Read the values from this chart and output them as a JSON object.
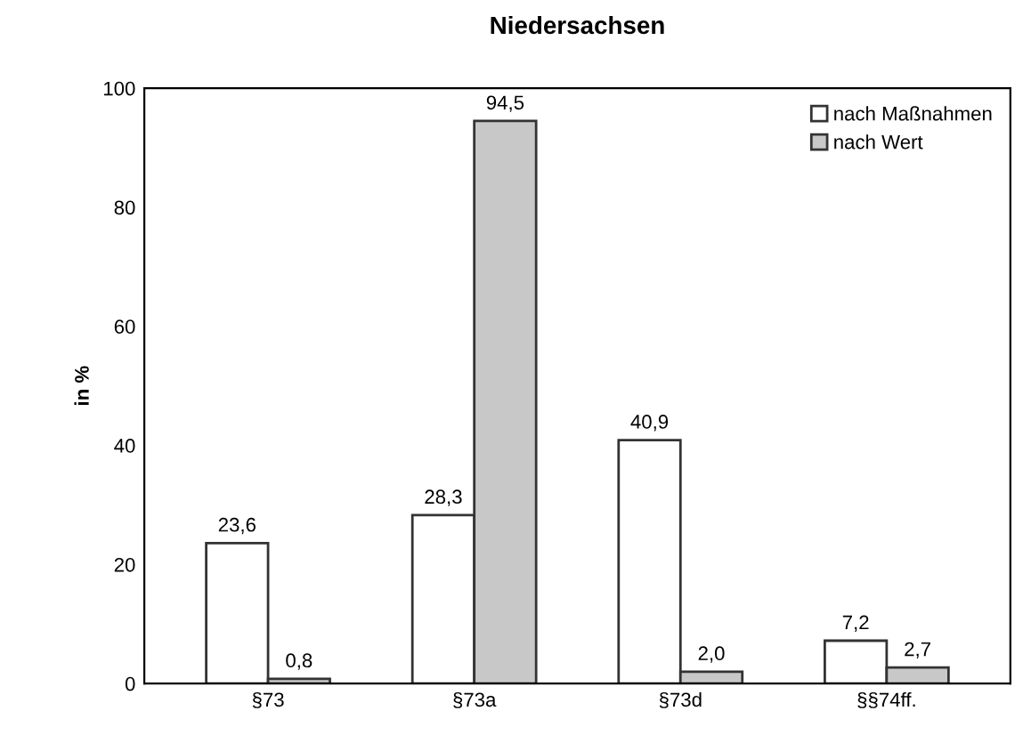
{
  "chart_data": {
    "type": "bar",
    "title": "Niedersachsen",
    "ylabel": "in %",
    "categories": [
      "§73",
      "§73a",
      "§73d",
      "§§74ff."
    ],
    "series": [
      {
        "name": "nach Maßnahmen",
        "color": "#ffffff",
        "values": [
          23.6,
          28.3,
          40.9,
          7.2
        ],
        "value_labels": [
          "23,6",
          "28,3",
          "40,9",
          "7,2"
        ]
      },
      {
        "name": "nach Wert",
        "color": "#c8c8c8",
        "values": [
          0.8,
          94.5,
          2.0,
          2.7
        ],
        "value_labels": [
          "0,8",
          "94,5",
          "2,0",
          "2,7"
        ]
      }
    ],
    "ylim": [
      0,
      100
    ],
    "yticks": [
      0,
      20,
      40,
      60,
      80,
      100
    ],
    "grid": false,
    "legend": "top right"
  }
}
